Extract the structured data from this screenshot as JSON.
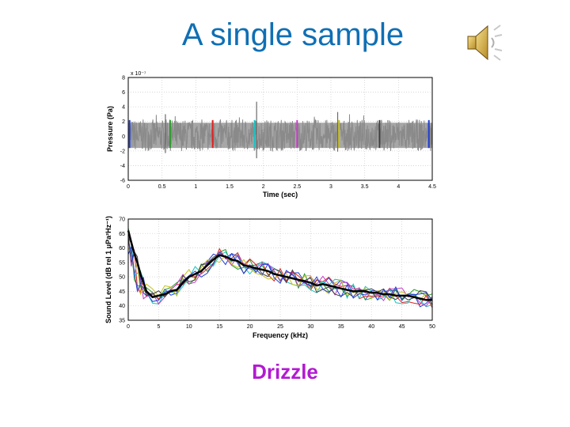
{
  "title": "A single sample",
  "caption": "Drizzle",
  "icons": {
    "speaker": "speaker-icon"
  },
  "colors": {
    "title": "#0f6fb4",
    "caption": "#b21ad1"
  },
  "chart_data": [
    {
      "type": "area",
      "xlabel": "Time (sec)",
      "ylabel": "Pressure (Pa)",
      "exponent_label": "x 10⁻⁷",
      "xlim": [
        0,
        4.5
      ],
      "ylim": [
        -6,
        8
      ],
      "xticks": [
        "0",
        "0.5",
        "1",
        "1.5",
        "2",
        "2.5",
        "3",
        "3.5",
        "4",
        "4.5"
      ],
      "yticks": [
        "-6",
        "-4",
        "-2",
        "0",
        "2",
        "4",
        "6",
        "8"
      ],
      "grid": true,
      "noise_band": [
        -2,
        2.3
      ],
      "noise_color": "#8a8a8a",
      "spikes": [
        {
          "x": 1.9,
          "y": [
            -3,
            4.7
          ]
        },
        {
          "x": 0.55,
          "y": [
            -2.3,
            3
          ]
        },
        {
          "x": 3.1,
          "y": [
            -2.1,
            3.3
          ]
        }
      ],
      "markers": [
        {
          "x": 0.02,
          "color": "#1f3fd6"
        },
        {
          "x": 0.62,
          "color": "#2a9a2a"
        },
        {
          "x": 1.25,
          "color": "#e02020"
        },
        {
          "x": 1.87,
          "color": "#19c2c2"
        },
        {
          "x": 2.5,
          "color": "#c43cc4"
        },
        {
          "x": 3.12,
          "color": "#c8c020"
        },
        {
          "x": 3.72,
          "color": "#404040"
        },
        {
          "x": 4.45,
          "color": "#1f3fd6"
        }
      ]
    },
    {
      "type": "line",
      "xlabel": "Frequency (kHz)",
      "ylabel": "Sound Level (dB rel 1 μPa²Hz⁻¹)",
      "xlim": [
        0,
        50
      ],
      "ylim": [
        35,
        70
      ],
      "xticks": [
        "0",
        "5",
        "10",
        "15",
        "20",
        "25",
        "30",
        "35",
        "40",
        "45",
        "50"
      ],
      "yticks": [
        "35",
        "40",
        "45",
        "50",
        "55",
        "60",
        "65",
        "70"
      ],
      "grid": true,
      "mean": {
        "color": "#000000",
        "x": [
          0,
          0.5,
          1,
          1.5,
          2,
          2.5,
          3,
          4,
          5,
          6,
          7,
          8,
          9,
          10,
          11,
          12,
          13,
          14,
          15,
          16,
          17,
          18,
          19,
          20,
          21,
          22,
          23,
          24,
          25,
          26,
          27,
          28,
          29,
          30,
          31,
          32,
          33,
          34,
          35,
          36,
          37,
          38,
          39,
          40,
          41,
          42,
          43,
          44,
          45,
          46,
          47,
          48,
          49,
          50
        ],
        "y": [
          66,
          62,
          58,
          55,
          51,
          48,
          45,
          43,
          43.5,
          44,
          45,
          45.5,
          48,
          50,
          51,
          52,
          54,
          56,
          57.5,
          57,
          56,
          55.5,
          54,
          53.5,
          53,
          52.5,
          52,
          51,
          50.5,
          50,
          49.5,
          49,
          48.5,
          48,
          47,
          47.5,
          47,
          46.5,
          46,
          45.5,
          45,
          45,
          45,
          44.5,
          44.5,
          44,
          44,
          43.5,
          43.5,
          43.5,
          43,
          42.5,
          42,
          42
        ]
      },
      "series_colors": [
        "#1f3fd6",
        "#2a9a2a",
        "#e02020",
        "#19c2c2",
        "#c43cc4",
        "#c8c020",
        "#404040",
        "#1f3fd6"
      ],
      "series_spread": 3
    }
  ]
}
